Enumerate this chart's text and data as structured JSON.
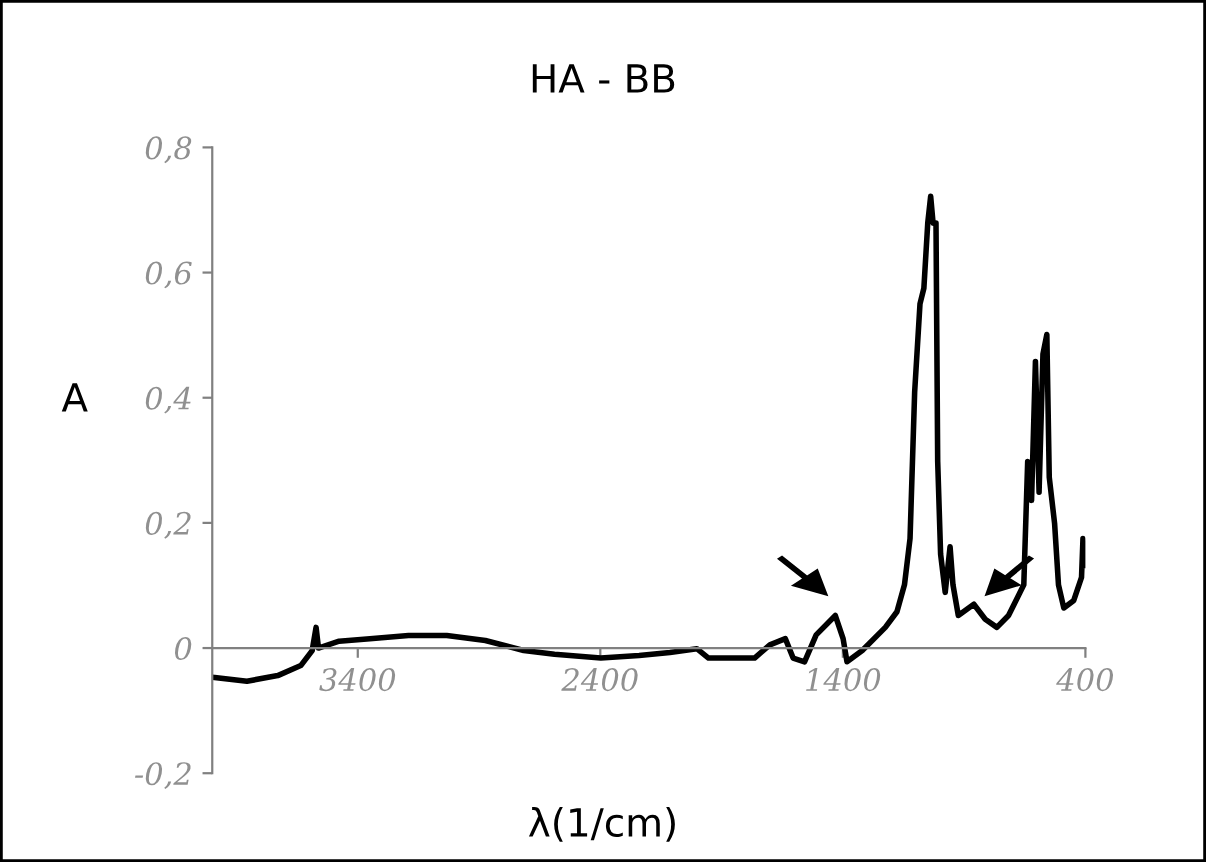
{
  "chart_data": {
    "type": "line",
    "title": "HA - BB",
    "xlabel": "λ(1/cm)",
    "ylabel": "A",
    "x": [
      3990,
      3857,
      3730,
      3635,
      3588,
      3572,
      3562,
      3477,
      3350,
      3191,
      3033,
      2874,
      2716,
      2589,
      2398,
      2240,
      2113,
      2002,
      1954,
      1764,
      1701,
      1637,
      1605,
      1558,
      1510,
      1431,
      1399,
      1383,
      1320,
      1225,
      1177,
      1146,
      1123,
      1104,
      1082,
      1066,
      1050,
      1038,
      1028,
      1016,
      1009,
      997,
      978,
      958,
      946,
      924,
      860,
      813,
      765,
      717,
      654,
      638,
      622,
      606,
      591,
      575,
      559,
      549,
      527,
      511,
      489,
      448,
      416,
      410,
      400
    ],
    "series": [
      {
        "color": "#000000",
        "values": [
          -0.047,
          -0.053,
          -0.044,
          -0.028,
          -0.004,
          0.033,
          0,
          0.011,
          0.015,
          0.02,
          0.02,
          0.012,
          -0.004,
          -0.01,
          -0.016,
          -0.012,
          -0.007,
          -0.001,
          -0.016,
          -0.016,
          0.005,
          0.015,
          -0.016,
          -0.022,
          0.021,
          0.052,
          0.015,
          -0.022,
          -0.004,
          0.033,
          0.058,
          0.101,
          0.175,
          0.409,
          0.55,
          0.575,
          0.679,
          0.722,
          0.679,
          0.679,
          0.298,
          0.15,
          0.089,
          0.162,
          0.101,
          0.052,
          0.07,
          0.046,
          0.033,
          0.052,
          0.101,
          0.298,
          0.236,
          0.458,
          0.249,
          0.47,
          0.501,
          0.273,
          0.199,
          0.101,
          0.064,
          0.076,
          0.113,
          0.175,
          0.132
        ]
      }
    ],
    "xlim": [
      4000,
      400
    ],
    "xticks": [
      3400,
      2400,
      1400,
      400
    ],
    "ylim": [
      -0.2,
      0.8
    ],
    "yticks": [
      {
        "value": -0.2,
        "label": "-0,2"
      },
      0,
      {
        "value": 0.2,
        "label": "0,2"
      },
      {
        "value": 0.4,
        "label": "0,4"
      },
      {
        "value": 0.6,
        "label": "0,6"
      },
      {
        "value": 0.8,
        "label": "0,8"
      }
    ],
    "grid": false,
    "legend": false,
    "marker": "none",
    "line_style": "solid"
  }
}
